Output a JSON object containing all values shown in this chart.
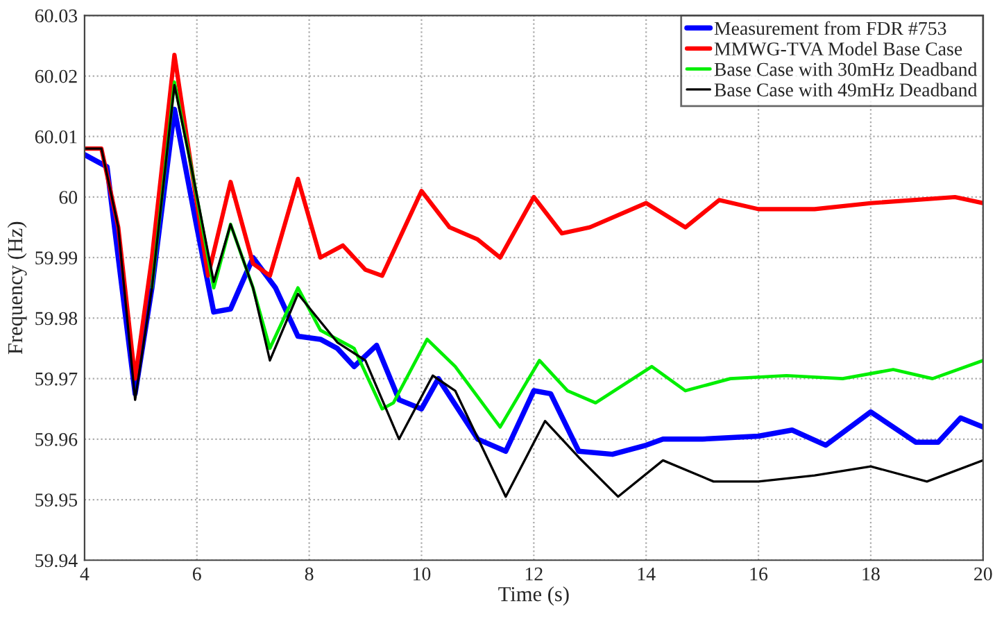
{
  "chart_data": {
    "type": "line",
    "xlabel": "Time (s)",
    "ylabel": "Frequency (Hz)",
    "xlim": [
      4,
      20
    ],
    "ylim": [
      59.94,
      60.03
    ],
    "xticks": [
      4,
      6,
      8,
      10,
      12,
      14,
      16,
      18,
      20
    ],
    "yticks": [
      {
        "value": 59.94,
        "label": "59.94"
      },
      {
        "value": 59.95,
        "label": "59.95"
      },
      {
        "value": 59.96,
        "label": "59.96"
      },
      {
        "value": 59.97,
        "label": "59.97"
      },
      {
        "value": 59.98,
        "label": "59.98"
      },
      {
        "value": 59.99,
        "label": "59.99"
      },
      {
        "value": 60,
        "label": "60"
      },
      {
        "value": 60.01,
        "label": "60.01"
      },
      {
        "value": 60.02,
        "label": "60.02"
      },
      {
        "value": 60.03,
        "label": "60.03"
      }
    ],
    "grid": true,
    "legend": "top right",
    "line_style": "solid",
    "marker": "none",
    "series": [
      {
        "name": "Measurement from FDR #753",
        "color": "#0000ff",
        "x": [
          4,
          4.4,
          4.9,
          5.2,
          5.6,
          6.0,
          6.3,
          6.6,
          7.0,
          7.4,
          7.8,
          8.2,
          8.5,
          8.8,
          9.2,
          9.6,
          10.0,
          10.3,
          11.0,
          11.5,
          12.0,
          12.3,
          12.8,
          13.4,
          14.0,
          14.3,
          15.0,
          16.0,
          16.6,
          17.2,
          18.0,
          18.8,
          19.2,
          19.6,
          20
        ],
        "values": [
          60.007,
          60.005,
          59.9675,
          59.985,
          60.0145,
          59.995,
          59.981,
          59.9815,
          59.99,
          59.985,
          59.977,
          59.9765,
          59.975,
          59.972,
          59.9755,
          59.9665,
          59.965,
          59.97,
          59.96,
          59.958,
          59.968,
          59.9675,
          59.958,
          59.9575,
          59.959,
          59.96,
          59.96,
          59.9605,
          59.9615,
          59.959,
          59.9645,
          59.9595,
          59.9595,
          59.9635,
          59.962
        ]
      },
      {
        "name": "MMWG-TVA Model Base Case",
        "color": "#ff0000",
        "x": [
          4,
          4.3,
          4.6,
          4.9,
          5.2,
          5.6,
          5.9,
          6.2,
          6.6,
          7.0,
          7.3,
          7.8,
          8.2,
          8.6,
          9.0,
          9.3,
          9.6,
          10.0,
          10.5,
          11.0,
          11.4,
          12.0,
          12.5,
          13.0,
          14.0,
          14.7,
          15.3,
          16.0,
          17.0,
          18.0,
          19.5,
          20
        ],
        "values": [
          60.008,
          60.008,
          59.995,
          59.97,
          59.99,
          60.0235,
          60.005,
          59.987,
          60.0025,
          59.989,
          59.987,
          60.003,
          59.99,
          59.992,
          59.988,
          59.987,
          59.993,
          60.001,
          59.995,
          59.993,
          59.99,
          60.0,
          59.994,
          59.995,
          59.999,
          59.995,
          59.9995,
          59.998,
          59.998,
          59.999,
          60.0,
          59.999
        ]
      },
      {
        "name": "Base Case with 30mHz Deadband",
        "color": "#00ee00",
        "x": [
          5.2,
          5.6,
          5.9,
          6.3,
          6.6,
          7.0,
          7.3,
          7.8,
          8.2,
          8.8,
          9.3,
          9.5,
          10.1,
          10.6,
          11.4,
          12.1,
          12.6,
          13.1,
          14.1,
          14.7,
          15.5,
          16.5,
          17.5,
          18.4,
          19.1,
          20
        ],
        "values": [
          59.985,
          60.019,
          60.005,
          59.985,
          59.9955,
          59.985,
          59.975,
          59.985,
          59.978,
          59.975,
          59.965,
          59.966,
          59.9765,
          59.972,
          59.962,
          59.973,
          59.968,
          59.966,
          59.972,
          59.968,
          59.97,
          59.9705,
          59.97,
          59.9715,
          59.97,
          59.973
        ]
      },
      {
        "name": "Base Case with 49mHz Deadband",
        "color": "#000000",
        "x": [
          4,
          4.3,
          4.6,
          4.9,
          5.2,
          5.6,
          5.9,
          6.3,
          6.6,
          7.0,
          7.3,
          7.8,
          8.5,
          9.0,
          9.6,
          10.2,
          10.6,
          11.5,
          12.2,
          12.8,
          13.5,
          14.3,
          15.2,
          16.0,
          17.0,
          18.0,
          19.0,
          20
        ],
        "values": [
          60.008,
          60.008,
          59.995,
          59.9665,
          59.985,
          60.0185,
          60.005,
          59.986,
          59.9955,
          59.985,
          59.973,
          59.984,
          59.976,
          59.973,
          59.96,
          59.9705,
          59.968,
          59.9505,
          59.963,
          59.957,
          59.9505,
          59.9565,
          59.953,
          59.953,
          59.954,
          59.9555,
          59.953,
          59.9565
        ]
      }
    ]
  }
}
